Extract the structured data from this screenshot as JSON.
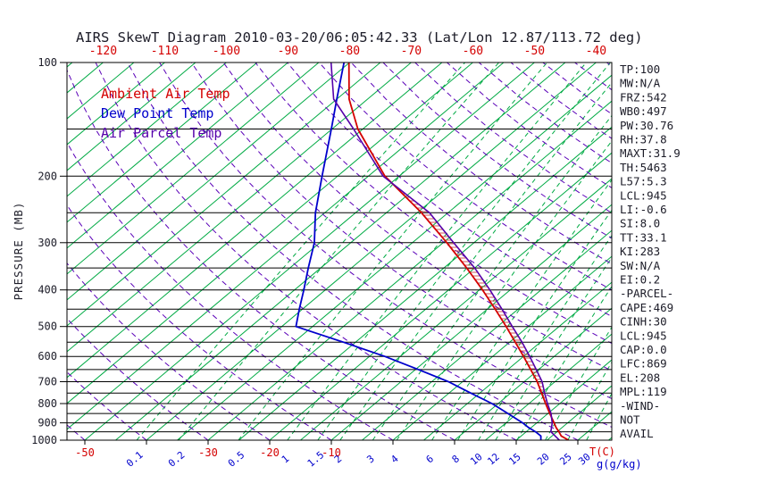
{
  "title": "AIRS SkewT Diagram 2010-03-20/06:05:42.33 (Lat/Lon 12.87/113.72 deg)",
  "legend": {
    "items": [
      {
        "label": "Ambient Air Temp",
        "color": "#d40000"
      },
      {
        "label": "Dew Point Temp",
        "color": "#0000cc"
      },
      {
        "label": "Air Parcel Temp",
        "color": "#5500aa"
      }
    ]
  },
  "y_axis": {
    "label": "PRESSURE (MB)",
    "ticks": [
      100,
      200,
      300,
      400,
      500,
      600,
      700,
      800,
      900,
      1000
    ]
  },
  "x_axis": {
    "top_labels": [
      -120,
      -110,
      -100,
      -90,
      -80,
      -70,
      -60,
      -50,
      -40
    ],
    "bottom_temp_labels": [
      -50,
      -30,
      -20,
      -10
    ],
    "temp_unit": "T(C)",
    "mixing_ratio_labels": [
      0.1,
      0.2,
      0.5,
      1,
      1.5,
      2,
      3,
      4,
      6,
      8,
      10,
      12,
      15,
      20,
      25,
      30
    ],
    "mixing_unit": "g(g/kg)"
  },
  "stats_panel": {
    "lines": [
      "TP:100",
      "MW:N/A",
      "FRZ:542",
      "WB0:497",
      "PW:30.76",
      "RH:37.8",
      "MAXT:31.9",
      "TH:5463",
      "L57:5.3",
      "LCL:945",
      "LI:-0.6",
      "SI:8.0",
      "TT:33.1",
      "KI:283",
      "SW:N/A",
      "EI:0.2",
      "-PARCEL-",
      "CAPE:469",
      "CINH:30",
      "LCL:945",
      "CAP:0.0",
      "LFC:869",
      "EL:208",
      "MPL:119",
      "-WIND-",
      "NOT",
      "AVAIL"
    ]
  },
  "colors": {
    "background": "#ffffff",
    "axis": "#000000",
    "text": "#1c1c28",
    "isotherm": "#00aa44",
    "mixing": "#00aa44",
    "adiabat": "#5a00b8",
    "temp": "#d40000",
    "dew": "#0000cc",
    "parcel": "#5500aa",
    "top_labels": "#d40000",
    "mixing_labels": "#0000cc",
    "hatch": "#c03030"
  },
  "chart_data": {
    "type": "line",
    "title": "AIRS SkewT Diagram 2010-03-20/06:05:42.33 (Lat/Lon 12.87/113.72 deg)",
    "x_axis_label": "T(C)",
    "y_axis_label": "PRESSURE (MB)",
    "y_scale": "log",
    "y_range_mb": [
      100,
      1000
    ],
    "skewed": true,
    "background": {
      "isotherms_c": {
        "min": -130,
        "max": 40,
        "step": 5
      },
      "dry_adiabats_c": {
        "min": -50,
        "max": 180,
        "step": 10
      },
      "mixing_ratio_g_kg": [
        0.1,
        0.2,
        0.5,
        1,
        1.5,
        2,
        3,
        4,
        6,
        8,
        10,
        12,
        15,
        20,
        25,
        30
      ],
      "pressure_lines_mb": [
        150,
        200,
        250,
        300,
        350,
        400,
        450,
        500,
        550,
        600,
        650,
        700,
        750,
        800,
        850,
        900,
        950,
        1000
      ]
    },
    "series": [
      {
        "name": "Ambient Air Temp",
        "key": "ambient-air-temp",
        "color_key": "temp",
        "pressure_mb": [
          1000,
          975,
          950,
          925,
          900,
          850,
          800,
          750,
          700,
          650,
          600,
          550,
          500,
          450,
          400,
          350,
          300,
          250,
          200,
          150,
          125,
          100
        ],
        "temp_c": [
          28.5,
          26.5,
          25.3,
          24.0,
          22.8,
          20.3,
          17.7,
          15.0,
          12.1,
          8.7,
          5.0,
          0.9,
          -3.6,
          -8.7,
          -14.5,
          -21.3,
          -29.4,
          -39.3,
          -52.3,
          -65.8,
          -73.0,
          -80.1
        ]
      },
      {
        "name": "Dew Point Temp",
        "key": "dew-point-temp",
        "color_key": "dew",
        "pressure_mb": [
          1000,
          975,
          950,
          925,
          900,
          850,
          800,
          750,
          700,
          650,
          600,
          550,
          500,
          450,
          400,
          350,
          300,
          250,
          200,
          150,
          125,
          100
        ],
        "temp_c": [
          24.0,
          23.2,
          21.5,
          19.5,
          17.7,
          13.5,
          9.0,
          3.5,
          -2.3,
          -9.5,
          -17.5,
          -27.0,
          -37.7,
          -40.5,
          -43.5,
          -47.0,
          -50.9,
          -56.5,
          -62.5,
          -70.1,
          -75.0,
          -80.9
        ]
      },
      {
        "name": "Air Parcel Temp",
        "key": "air-parcel-temp",
        "color_key": "parcel",
        "pressure_mb": [
          1000,
          950,
          900,
          850,
          800,
          750,
          700,
          650,
          600,
          550,
          500,
          450,
          400,
          350,
          300,
          250,
          200,
          150,
          125,
          100
        ],
        "temp_c": [
          27.0,
          24.0,
          22.5,
          20.5,
          18.0,
          15.5,
          12.9,
          9.6,
          6.0,
          2.0,
          -2.6,
          -7.6,
          -13.3,
          -20.0,
          -28.3,
          -38.0,
          -52.6,
          -66.5,
          -75.5,
          -83.0
        ]
      }
    ],
    "cape_hatch": {
      "between": [
        "air-parcel-temp",
        "ambient-air-temp"
      ],
      "pressure_range_mb": [
        869,
        208
      ]
    }
  }
}
